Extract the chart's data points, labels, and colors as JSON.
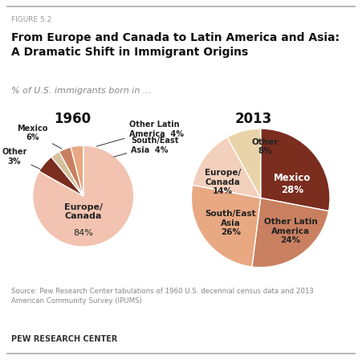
{
  "figure_label": "FIGURE 5.2",
  "title": "From Europe and Canada to Latin America and Asia:\nA Dramatic Shift in Immigrant Origins",
  "subtitle": "% of U.S. immigrants born in ...",
  "year_1960": "1960",
  "year_2013": "2013",
  "pie1960": {
    "labels": [
      "Europe/Canada",
      "Mexico",
      "Other",
      "Other Latin America",
      "South/East Asia"
    ],
    "values": [
      84,
      6,
      3,
      4,
      4
    ],
    "colors": [
      "#f2c3b0",
      "#7B2D1E",
      "#d4c09a",
      "#c98060",
      "#e8a882"
    ],
    "startangle": 90
  },
  "pie2013": {
    "labels": [
      "Mexico",
      "Other Latin America",
      "South/East Asia",
      "Europe/Canada",
      "Other"
    ],
    "values": [
      28,
      24,
      26,
      14,
      8
    ],
    "colors": [
      "#7B2D1E",
      "#c98060",
      "#e8a882",
      "#f2d0bc",
      "#e8d4a8"
    ],
    "startangle": 90
  },
  "source_text": "Source: Pew Research Center tabulations of 1960 U.S. decennial census data and 2013\nAmerican Community Survey (IPUMS)",
  "brand": "PEW RESEARCH CENTER",
  "bg_color": "#ffffff",
  "label_color": "#222222",
  "source_color": "#888888"
}
